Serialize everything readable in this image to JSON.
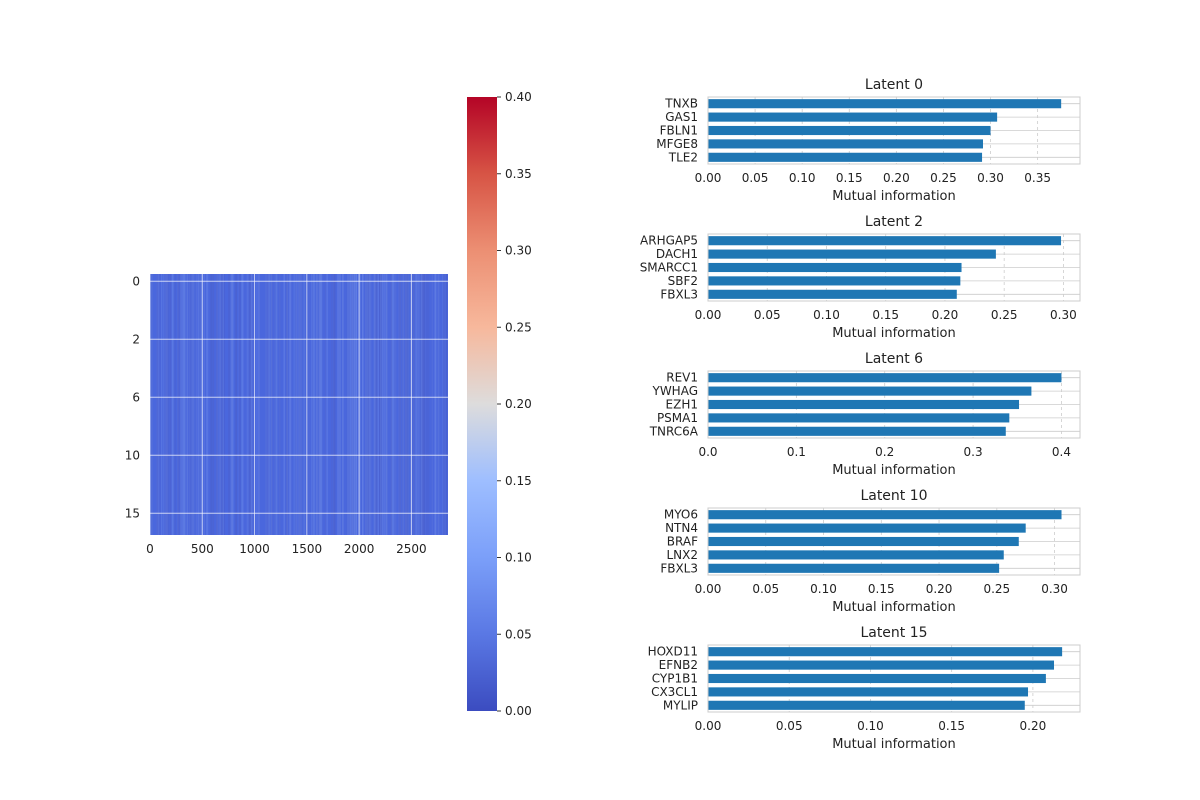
{
  "colors": {
    "bar": "#1f77b4",
    "grid": "#cccccc",
    "spine": "#cccccc",
    "heatmap_base": "#4a67dd"
  },
  "chart_data": [
    {
      "type": "heatmap",
      "title": "",
      "xlabel": "",
      "ylabel": "",
      "x_range": [
        0,
        2850
      ],
      "x_ticks": [
        0,
        500,
        1000,
        1500,
        2000,
        2500
      ],
      "y_rows": 18,
      "y_tick_labels": [
        "0",
        "2",
        "6",
        "10",
        "15"
      ],
      "value_range_estimate": [
        0.02,
        0.07
      ],
      "grid": true,
      "colorbar": {
        "colormap": "coolwarm",
        "range": [
          0.0,
          0.4
        ],
        "ticks": [
          "0.00",
          "0.05",
          "0.10",
          "0.15",
          "0.20",
          "0.25",
          "0.30",
          "0.35",
          "0.40"
        ]
      }
    },
    {
      "type": "bar",
      "orientation": "horizontal",
      "title": "Latent 0",
      "xlabel": "Mutual information",
      "categories": [
        "TNXB",
        "GAS1",
        "FBLN1",
        "MFGE8",
        "TLE2"
      ],
      "values": [
        0.375,
        0.307,
        0.3,
        0.292,
        0.291
      ],
      "xlim": [
        0,
        0.395
      ],
      "x_ticks": [
        0.0,
        0.05,
        0.1,
        0.15,
        0.2,
        0.25,
        0.3,
        0.35
      ],
      "x_tick_labels": [
        "0.00",
        "0.05",
        "0.10",
        "0.15",
        "0.20",
        "0.25",
        "0.30",
        "0.35"
      ],
      "grid": true
    },
    {
      "type": "bar",
      "orientation": "horizontal",
      "title": "Latent 2",
      "xlabel": "Mutual information",
      "categories": [
        "ARHGAP5",
        "DACH1",
        "SMARCC1",
        "SBF2",
        "FBXL3"
      ],
      "values": [
        0.298,
        0.243,
        0.214,
        0.213,
        0.21
      ],
      "xlim": [
        0,
        0.314
      ],
      "x_ticks": [
        0.0,
        0.05,
        0.1,
        0.15,
        0.2,
        0.25,
        0.3
      ],
      "x_tick_labels": [
        "0.00",
        "0.05",
        "0.10",
        "0.15",
        "0.20",
        "0.25",
        "0.30"
      ],
      "grid": true
    },
    {
      "type": "bar",
      "orientation": "horizontal",
      "title": "Latent 6",
      "xlabel": "Mutual information",
      "categories": [
        "REV1",
        "YWHAG",
        "EZH1",
        "PSMA1",
        "TNRC6A"
      ],
      "values": [
        0.4,
        0.366,
        0.352,
        0.341,
        0.337
      ],
      "xlim": [
        0,
        0.421
      ],
      "x_ticks": [
        0.0,
        0.1,
        0.2,
        0.3,
        0.4
      ],
      "x_tick_labels": [
        "0.0",
        "0.1",
        "0.2",
        "0.3",
        "0.4"
      ],
      "grid": true
    },
    {
      "type": "bar",
      "orientation": "horizontal",
      "title": "Latent 10",
      "xlabel": "Mutual information",
      "categories": [
        "MYO6",
        "NTN4",
        "BRAF",
        "LNX2",
        "FBXL3"
      ],
      "values": [
        0.306,
        0.275,
        0.269,
        0.256,
        0.252
      ],
      "xlim": [
        0,
        0.322
      ],
      "x_ticks": [
        0.0,
        0.05,
        0.1,
        0.15,
        0.2,
        0.25,
        0.3
      ],
      "x_tick_labels": [
        "0.00",
        "0.05",
        "0.10",
        "0.15",
        "0.20",
        "0.25",
        "0.30"
      ],
      "grid": true
    },
    {
      "type": "bar",
      "orientation": "horizontal",
      "title": "Latent 15",
      "xlabel": "Mutual information",
      "categories": [
        "HOXD11",
        "EFNB2",
        "CYP1B1",
        "CX3CL1",
        "MYLIP"
      ],
      "values": [
        0.218,
        0.213,
        0.208,
        0.197,
        0.195
      ],
      "xlim": [
        0,
        0.229
      ],
      "x_ticks": [
        0.0,
        0.05,
        0.1,
        0.15,
        0.2
      ],
      "x_tick_labels": [
        "0.00",
        "0.05",
        "0.10",
        "0.15",
        "0.20"
      ],
      "grid": true
    }
  ]
}
